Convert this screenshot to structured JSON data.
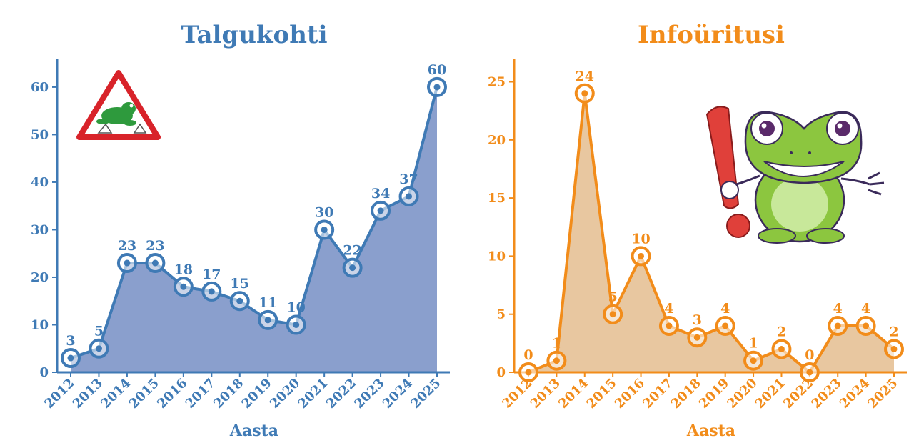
{
  "chart_data": [
    {
      "type": "area",
      "title": "Talgukohti",
      "xlabel": "Aasta",
      "ylabel": "",
      "color": "#3f7ab5",
      "fill": "#8a9fcd",
      "ylim": [
        0,
        66
      ],
      "yticks": [
        0,
        10,
        20,
        30,
        40,
        50,
        60
      ],
      "categories": [
        "2012",
        "2013",
        "2014",
        "2015",
        "2016",
        "2017",
        "2018",
        "2019",
        "2020",
        "2021",
        "2022",
        "2023",
        "2024",
        "2025"
      ],
      "values": [
        3,
        5,
        23,
        23,
        18,
        17,
        15,
        11,
        10,
        30,
        22,
        34,
        37,
        60
      ],
      "grid": false,
      "icon": "frog-crossing-warning-sign-icon"
    },
    {
      "type": "area",
      "title": "Infoüritusi",
      "xlabel": "Aasta",
      "ylabel": "",
      "color": "#f28c1a",
      "fill": "#e8c7a0",
      "ylim": [
        0,
        27
      ],
      "yticks": [
        0,
        5,
        10,
        15,
        20,
        25
      ],
      "categories": [
        "2012",
        "2013",
        "2014",
        "2015",
        "2016",
        "2017",
        "2018",
        "2019",
        "2020",
        "2021",
        "2022",
        "2023",
        "2024",
        "2025"
      ],
      "values": [
        0,
        1,
        24,
        5,
        10,
        4,
        3,
        4,
        1,
        2,
        0,
        4,
        4,
        2
      ],
      "grid": false,
      "icon": "frog-with-exclamation-mark-icon"
    }
  ]
}
